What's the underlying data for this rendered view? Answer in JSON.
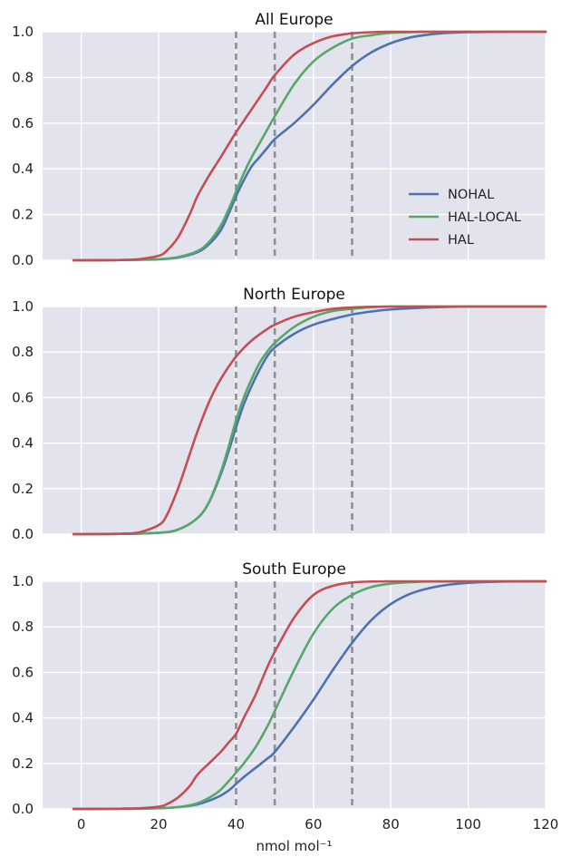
{
  "chart_data": [
    {
      "type": "line",
      "title": "All Europe",
      "xlabel": "",
      "ylabel": "",
      "xlim": [
        -10,
        120
      ],
      "ylim": [
        0,
        1.0
      ],
      "xticks": [
        "0",
        "20",
        "40",
        "60",
        "80",
        "100",
        "120"
      ],
      "yticks": [
        "0.0",
        "0.2",
        "0.4",
        "0.6",
        "0.8",
        "1.0"
      ],
      "vlines": [
        40,
        50,
        70
      ],
      "legend": {
        "position": "lower-right",
        "entries": [
          "NOHAL",
          "HAL-LOCAL",
          "HAL"
        ]
      },
      "series": [
        {
          "name": "NOHAL",
          "color": "#4c72b0",
          "x": [
            -2,
            10,
            20,
            25,
            30,
            33,
            36,
            38,
            40,
            42,
            44,
            46,
            48,
            50,
            55,
            60,
            65,
            70,
            75,
            80,
            85,
            90,
            95,
            100,
            105,
            110,
            120
          ],
          "y": [
            0,
            0.001,
            0.004,
            0.012,
            0.035,
            0.07,
            0.13,
            0.2,
            0.28,
            0.35,
            0.41,
            0.45,
            0.49,
            0.53,
            0.6,
            0.68,
            0.77,
            0.85,
            0.91,
            0.95,
            0.975,
            0.988,
            0.995,
            0.998,
            0.999,
            1.0,
            1.0
          ]
        },
        {
          "name": "HAL-LOCAL",
          "color": "#55a868",
          "x": [
            -2,
            10,
            20,
            25,
            30,
            33,
            36,
            38,
            40,
            42,
            44,
            46,
            48,
            50,
            55,
            60,
            65,
            70,
            75,
            80,
            85,
            90,
            100,
            120
          ],
          "y": [
            0,
            0.001,
            0.005,
            0.014,
            0.04,
            0.08,
            0.15,
            0.22,
            0.3,
            0.38,
            0.45,
            0.51,
            0.57,
            0.63,
            0.77,
            0.87,
            0.93,
            0.97,
            0.985,
            0.995,
            0.998,
            1.0,
            1.0,
            1.0
          ]
        },
        {
          "name": "HAL",
          "color": "#c44e52",
          "x": [
            -2,
            10,
            15,
            20,
            22,
            25,
            28,
            30,
            33,
            36,
            40,
            44,
            48,
            50,
            55,
            60,
            65,
            70,
            75,
            80,
            90,
            120
          ],
          "y": [
            0,
            0.001,
            0.005,
            0.02,
            0.04,
            0.1,
            0.2,
            0.28,
            0.37,
            0.45,
            0.56,
            0.66,
            0.76,
            0.81,
            0.9,
            0.95,
            0.98,
            0.993,
            0.998,
            1.0,
            1.0,
            1.0
          ]
        }
      ]
    },
    {
      "type": "line",
      "title": "North Europe",
      "xlabel": "",
      "ylabel": "",
      "xlim": [
        -10,
        120
      ],
      "ylim": [
        0,
        1.0
      ],
      "xticks": [
        "0",
        "20",
        "40",
        "60",
        "80",
        "100",
        "120"
      ],
      "yticks": [
        "0.0",
        "0.2",
        "0.4",
        "0.6",
        "0.8",
        "1.0"
      ],
      "vlines": [
        40,
        50,
        70
      ],
      "series": [
        {
          "name": "NOHAL",
          "color": "#4c72b0",
          "x": [
            -2,
            10,
            20,
            25,
            30,
            33,
            36,
            38,
            40,
            42,
            44,
            46,
            48,
            50,
            55,
            60,
            65,
            70,
            75,
            80,
            90,
            100,
            120
          ],
          "y": [
            0,
            0.001,
            0.006,
            0.02,
            0.07,
            0.14,
            0.26,
            0.36,
            0.47,
            0.57,
            0.65,
            0.72,
            0.78,
            0.82,
            0.88,
            0.92,
            0.945,
            0.965,
            0.978,
            0.987,
            0.996,
            1.0,
            1.0
          ]
        },
        {
          "name": "HAL-LOCAL",
          "color": "#55a868",
          "x": [
            -2,
            10,
            20,
            25,
            30,
            33,
            36,
            38,
            40,
            42,
            44,
            46,
            48,
            50,
            55,
            60,
            65,
            70,
            75,
            80,
            90,
            120
          ],
          "y": [
            0,
            0.001,
            0.006,
            0.02,
            0.07,
            0.14,
            0.27,
            0.38,
            0.5,
            0.6,
            0.68,
            0.75,
            0.8,
            0.84,
            0.91,
            0.955,
            0.98,
            0.99,
            0.997,
            1.0,
            1.0,
            1.0
          ]
        },
        {
          "name": "HAL",
          "color": "#c44e52",
          "x": [
            -2,
            10,
            15,
            20,
            22,
            25,
            28,
            30,
            33,
            36,
            40,
            44,
            48,
            50,
            55,
            60,
            65,
            70,
            75,
            80,
            90,
            120
          ],
          "y": [
            0,
            0.002,
            0.008,
            0.04,
            0.08,
            0.2,
            0.35,
            0.45,
            0.58,
            0.68,
            0.78,
            0.85,
            0.9,
            0.92,
            0.955,
            0.975,
            0.99,
            0.996,
            0.999,
            1.0,
            1.0,
            1.0
          ]
        }
      ]
    },
    {
      "type": "line",
      "title": "South Europe",
      "xlabel": "nmol mol⁻¹",
      "ylabel": "",
      "xlim": [
        -10,
        120
      ],
      "ylim": [
        0,
        1.0
      ],
      "xticks": [
        "0",
        "20",
        "40",
        "60",
        "80",
        "100",
        "120"
      ],
      "yticks": [
        "0.0",
        "0.2",
        "0.4",
        "0.6",
        "0.8",
        "1.0"
      ],
      "vlines": [
        40,
        50,
        70
      ],
      "series": [
        {
          "name": "NOHAL",
          "color": "#4c72b0",
          "x": [
            -2,
            10,
            20,
            25,
            30,
            35,
            38,
            40,
            42,
            45,
            48,
            50,
            55,
            60,
            65,
            70,
            75,
            80,
            85,
            90,
            95,
            100,
            105,
            110,
            120
          ],
          "y": [
            0,
            0.001,
            0.003,
            0.008,
            0.02,
            0.05,
            0.08,
            0.11,
            0.14,
            0.18,
            0.22,
            0.25,
            0.36,
            0.48,
            0.61,
            0.73,
            0.83,
            0.9,
            0.945,
            0.97,
            0.985,
            0.993,
            0.997,
            0.999,
            1.0
          ]
        },
        {
          "name": "HAL-LOCAL",
          "color": "#55a868",
          "x": [
            -2,
            10,
            20,
            25,
            30,
            35,
            38,
            40,
            42,
            45,
            48,
            50,
            55,
            60,
            65,
            70,
            75,
            80,
            85,
            90,
            100,
            120
          ],
          "y": [
            0,
            0.001,
            0.003,
            0.008,
            0.025,
            0.07,
            0.12,
            0.16,
            0.2,
            0.27,
            0.36,
            0.43,
            0.61,
            0.77,
            0.88,
            0.94,
            0.975,
            0.99,
            0.996,
            0.999,
            1.0,
            1.0
          ]
        },
        {
          "name": "HAL",
          "color": "#c44e52",
          "x": [
            -2,
            10,
            15,
            20,
            22,
            25,
            28,
            30,
            33,
            36,
            38,
            40,
            42,
            45,
            48,
            50,
            55,
            60,
            65,
            70,
            75,
            80,
            90,
            120
          ],
          "y": [
            0,
            0.001,
            0.003,
            0.01,
            0.02,
            0.05,
            0.1,
            0.15,
            0.2,
            0.25,
            0.29,
            0.33,
            0.4,
            0.5,
            0.62,
            0.69,
            0.84,
            0.94,
            0.98,
            0.995,
            0.999,
            1.0,
            1.0,
            1.0
          ]
        }
      ]
    }
  ]
}
